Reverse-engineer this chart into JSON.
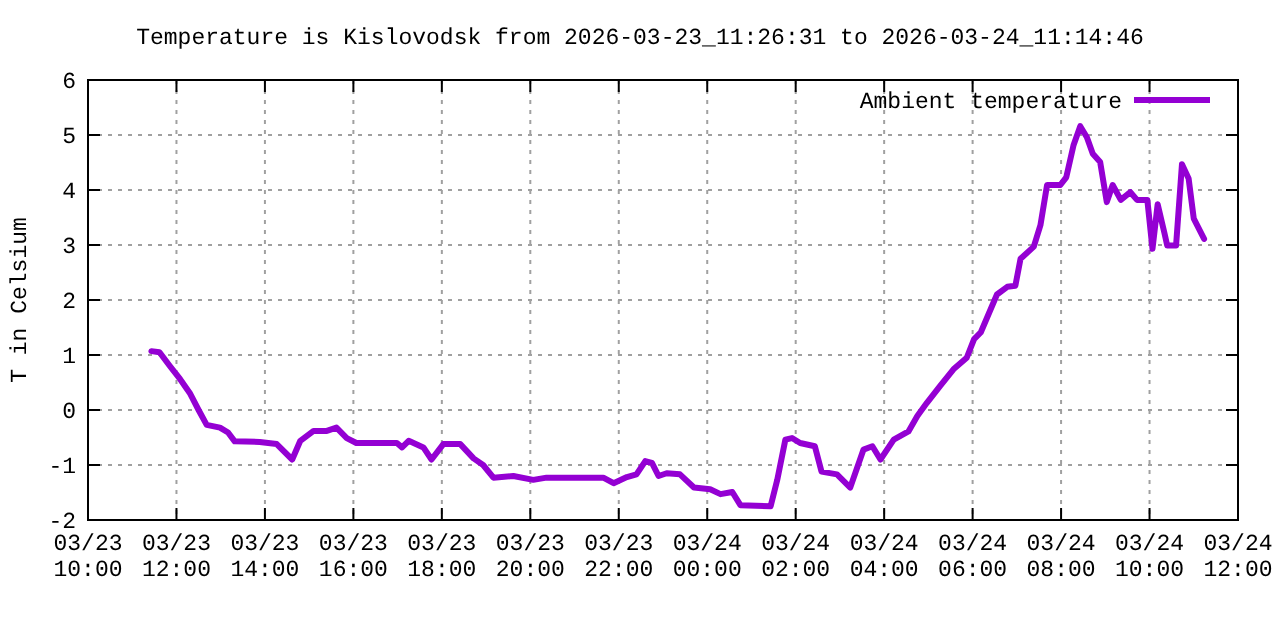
{
  "chart_data": {
    "type": "line",
    "title": "Temperature is Kislovodsk from 2026-03-23_11:26:31 to 2026-03-24_11:14:46",
    "ylabel": "T in Celsium",
    "x": [
      "2026-03-23T11:26",
      "2026-03-23T11:37",
      "2026-03-23T11:51",
      "2026-03-23T12:05",
      "2026-03-23T12:18",
      "2026-03-23T12:30",
      "2026-03-23T12:41",
      "2026-03-23T12:59",
      "2026-03-23T13:10",
      "2026-03-23T13:19",
      "2026-03-23T13:53",
      "2026-03-23T14:16",
      "2026-03-23T14:37",
      "2026-03-23T14:48",
      "2026-03-23T15:06",
      "2026-03-23T15:24",
      "2026-03-23T15:37",
      "2026-03-23T15:51",
      "2026-03-23T16:04",
      "2026-03-23T16:59",
      "2026-03-23T17:06",
      "2026-03-23T17:15",
      "2026-03-23T17:35",
      "2026-03-23T17:46",
      "2026-03-23T18:02",
      "2026-03-23T18:25",
      "2026-03-23T18:43",
      "2026-03-23T18:56",
      "2026-03-23T19:10",
      "2026-03-23T19:37",
      "2026-03-23T20:04",
      "2026-03-23T20:22",
      "2026-03-23T21:39",
      "2026-03-23T21:53",
      "2026-03-23T22:11",
      "2026-03-23T22:24",
      "2026-03-23T22:36",
      "2026-03-23T22:45",
      "2026-03-23T22:54",
      "2026-03-23T23:05",
      "2026-03-23T23:23",
      "2026-03-23T23:42",
      "2026-03-24T00:04",
      "2026-03-24T00:18",
      "2026-03-24T00:34",
      "2026-03-24T00:45",
      "2026-03-24T01:26",
      "2026-03-24T01:35",
      "2026-03-24T01:46",
      "2026-03-24T01:55",
      "2026-03-24T02:06",
      "2026-03-24T02:26",
      "2026-03-24T02:35",
      "2026-03-24T02:56",
      "2026-03-24T03:14",
      "2026-03-24T03:32",
      "2026-03-24T03:44",
      "2026-03-24T03:55",
      "2026-03-24T04:13",
      "2026-03-24T04:33",
      "2026-03-24T04:45",
      "2026-03-24T04:58",
      "2026-03-24T05:16",
      "2026-03-24T05:34",
      "2026-03-24T05:52",
      "2026-03-24T06:02",
      "2026-03-24T06:11",
      "2026-03-24T06:33",
      "2026-03-24T06:47",
      "2026-03-24T06:58",
      "2026-03-24T07:05",
      "2026-03-24T07:23",
      "2026-03-24T07:32",
      "2026-03-24T07:41",
      "2026-03-24T07:59",
      "2026-03-24T08:07",
      "2026-03-24T08:17",
      "2026-03-24T08:26",
      "2026-03-24T08:35",
      "2026-03-24T08:43",
      "2026-03-24T08:53",
      "2026-03-24T09:02",
      "2026-03-24T09:10",
      "2026-03-24T09:21",
      "2026-03-24T09:34",
      "2026-03-24T09:43",
      "2026-03-24T09:57",
      "2026-03-24T10:04",
      "2026-03-24T10:11",
      "2026-03-24T10:20",
      "2026-03-24T10:24",
      "2026-03-24T10:36",
      "2026-03-24T10:44",
      "2026-03-24T10:53",
      "2026-03-24T11:00",
      "2026-03-24T11:14"
    ],
    "series": [
      {
        "name": "Ambient temperature",
        "color": "#9400d3",
        "values": [
          1.07,
          1.05,
          0.8,
          0.56,
          0.31,
          0,
          -0.27,
          -0.32,
          -0.41,
          -0.57,
          -0.58,
          -0.62,
          -0.9,
          -0.56,
          -0.38,
          -0.38,
          -0.32,
          -0.51,
          -0.6,
          -0.6,
          -0.68,
          -0.56,
          -0.68,
          -0.9,
          -0.62,
          -0.62,
          -0.88,
          -1.0,
          -1.23,
          -1.2,
          -1.27,
          -1.23,
          -1.23,
          -1.33,
          -1.22,
          -1.17,
          -0.93,
          -0.96,
          -1.2,
          -1.15,
          -1.17,
          -1.41,
          -1.44,
          -1.53,
          -1.49,
          -1.73,
          -1.75,
          -1.27,
          -0.54,
          -0.51,
          -0.6,
          -0.66,
          -1.12,
          -1.17,
          -1.41,
          -0.72,
          -0.66,
          -0.9,
          -0.54,
          -0.39,
          -0.11,
          0.13,
          0.44,
          0.74,
          0.95,
          1.29,
          1.41,
          2.1,
          2.24,
          2.26,
          2.75,
          2.97,
          3.36,
          4.09,
          4.09,
          4.23,
          4.82,
          5.16,
          4.96,
          4.66,
          4.51,
          3.78,
          4.09,
          3.82,
          3.96,
          3.82,
          3.82,
          2.93,
          3.74,
          3.23,
          2.99,
          2.99,
          4.47,
          4.21,
          3.48,
          3.11
        ]
      }
    ],
    "xlim": [
      "2026-03-23T10:00",
      "2026-03-24T12:00"
    ],
    "xticks": [
      {
        "value": "2026-03-23T10:00",
        "label": "03/23\n10:00"
      },
      {
        "value": "2026-03-23T12:00",
        "label": "03/23\n12:00"
      },
      {
        "value": "2026-03-23T14:00",
        "label": "03/23\n14:00"
      },
      {
        "value": "2026-03-23T16:00",
        "label": "03/23\n16:00"
      },
      {
        "value": "2026-03-23T18:00",
        "label": "03/23\n18:00"
      },
      {
        "value": "2026-03-23T20:00",
        "label": "03/23\n20:00"
      },
      {
        "value": "2026-03-23T22:00",
        "label": "03/23\n22:00"
      },
      {
        "value": "2026-03-24T00:00",
        "label": "03/24\n00:00"
      },
      {
        "value": "2026-03-24T02:00",
        "label": "03/24\n02:00"
      },
      {
        "value": "2026-03-24T04:00",
        "label": "03/24\n04:00"
      },
      {
        "value": "2026-03-24T06:00",
        "label": "03/24\n06:00"
      },
      {
        "value": "2026-03-24T08:00",
        "label": "03/24\n08:00"
      },
      {
        "value": "2026-03-24T10:00",
        "label": "03/24\n10:00"
      },
      {
        "value": "2026-03-24T12:00",
        "label": "03/24\n12:00"
      }
    ],
    "ylim": [
      -2,
      6
    ],
    "yticks": [
      -2,
      -1,
      0,
      1,
      2,
      3,
      4,
      5,
      6
    ],
    "grid": true,
    "legend": "top right",
    "marker": "none",
    "line_style": "solid"
  }
}
